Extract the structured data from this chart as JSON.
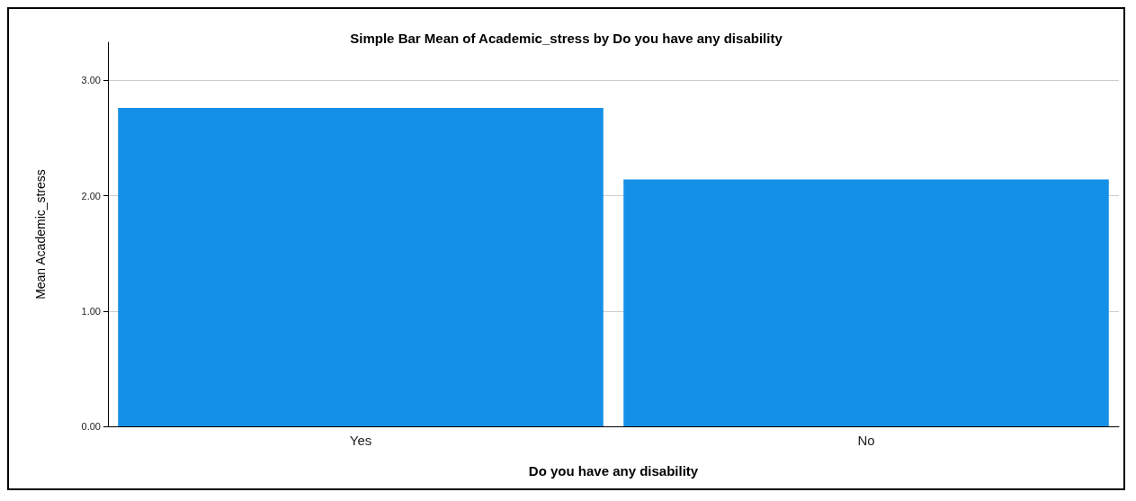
{
  "chart_data": {
    "type": "bar",
    "title": "Simple Bar Mean of Academic_stress by Do you have any disability",
    "xlabel": "Do you have any disability",
    "ylabel": "Mean Academic_stress",
    "categories": [
      "Yes",
      "No"
    ],
    "values": [
      2.76,
      2.14
    ],
    "color": "#1490e6",
    "ylim": [
      0,
      3.33
    ],
    "yticks": [
      {
        "value": 0,
        "label": "0.00"
      },
      {
        "value": 1,
        "label": "1.00"
      },
      {
        "value": 2,
        "label": "2.00"
      },
      {
        "value": 3,
        "label": "3.00"
      }
    ],
    "grid": "y"
  }
}
